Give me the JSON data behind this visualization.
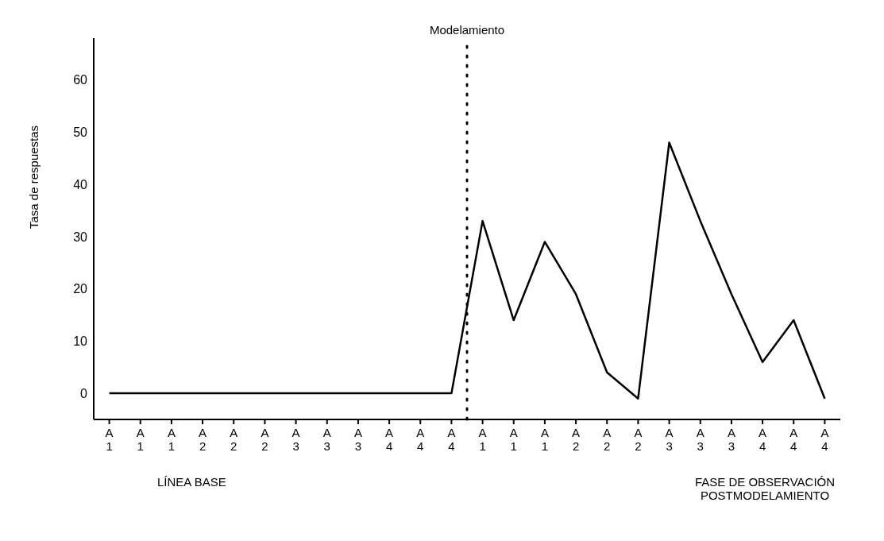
{
  "chart_data": {
    "type": "line",
    "ylabel": "Tasa de respuestas",
    "categories": [
      "A 1",
      "A 1",
      "A 1",
      "A 2",
      "A 2",
      "A 2",
      "A 3",
      "A 3",
      "A 3",
      "A 4",
      "A 4",
      "A 4",
      "A 1",
      "A 1",
      "A 1",
      "A 2",
      "A 2",
      "A 2",
      "A 3",
      "A 3",
      "A 3",
      "A 4",
      "A 4",
      "A 4"
    ],
    "series": [
      {
        "color": "#000000",
        "values": [
          0,
          0,
          0,
          0,
          0,
          0,
          0,
          0,
          0,
          0,
          0,
          0,
          33,
          14,
          29,
          19,
          4,
          -1,
          48,
          33,
          19,
          6,
          14,
          -1
        ]
      }
    ],
    "ylim": [
      -5,
      68
    ],
    "yticks": [
      0,
      10,
      20,
      30,
      40,
      50,
      60
    ],
    "annotations": [
      "Modelamiento",
      "LÍNEA BASE",
      "FASE DE OBSERVACIÓN POSTMODELAMIENTO"
    ],
    "grid": false,
    "legend": false,
    "marker": "none",
    "line_style": "solid"
  }
}
